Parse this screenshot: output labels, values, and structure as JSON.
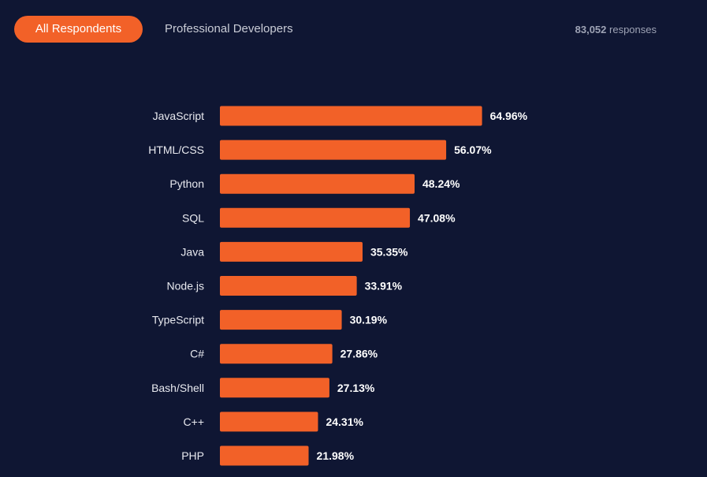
{
  "tabs": [
    {
      "label": "All Respondents",
      "active": true
    },
    {
      "label": "Professional Developers",
      "active": false
    }
  ],
  "responses": {
    "count": "83,052",
    "label": "responses"
  },
  "colors": {
    "background": "#0f1633",
    "bar": "#f26128",
    "accent": "#f26128"
  },
  "chart_data": {
    "type": "bar",
    "orientation": "horizontal",
    "categories": [
      "JavaScript",
      "HTML/CSS",
      "Python",
      "SQL",
      "Java",
      "Node.js",
      "TypeScript",
      "C#",
      "Bash/Shell",
      "C++",
      "PHP"
    ],
    "values": [
      64.96,
      56.07,
      48.24,
      47.08,
      35.35,
      33.91,
      30.19,
      27.86,
      27.13,
      24.31,
      21.98
    ],
    "value_labels": [
      "64.96%",
      "56.07%",
      "48.24%",
      "47.08%",
      "35.35%",
      "33.91%",
      "30.19%",
      "27.86%",
      "27.13%",
      "24.31%",
      "21.98%"
    ],
    "title": "",
    "xlabel": "",
    "ylabel": "",
    "grid": false,
    "legend": "none"
  }
}
